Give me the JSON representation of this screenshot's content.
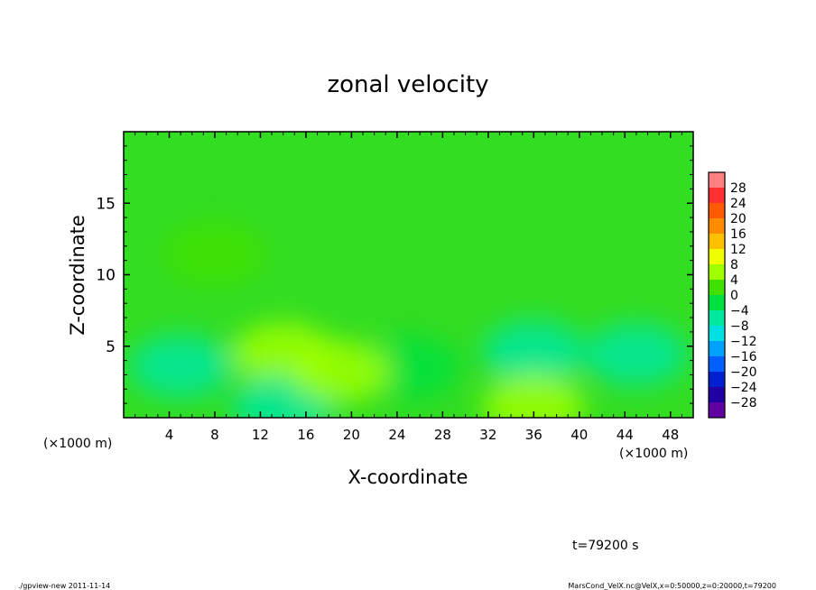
{
  "chart_data": {
    "type": "heatmap",
    "title": "zonal velocity",
    "xlabel": "X-coordinate",
    "ylabel": "Z-coordinate",
    "x_unit_left": "(×1000 m)",
    "x_unit_right": "(×1000 m)",
    "xlim": [
      0,
      50
    ],
    "ylim": [
      0,
      20
    ],
    "x_ticks": [
      4,
      8,
      12,
      16,
      20,
      24,
      28,
      32,
      36,
      40,
      44,
      48
    ],
    "y_ticks": [
      5,
      10,
      15
    ],
    "colorbar": {
      "levels": [
        28,
        24,
        20,
        16,
        12,
        8,
        4,
        0,
        -4,
        -8,
        -12,
        -16,
        -20,
        -24,
        -28
      ],
      "level_labels": [
        "28",
        "24",
        "20",
        "16",
        "12",
        "8",
        "4",
        "0",
        "−4",
        "−8",
        "−12",
        "−16",
        "−20",
        "−24",
        "−28"
      ],
      "colors": [
        "#ff8080",
        "#ff3030",
        "#ff5a00",
        "#ff8c00",
        "#ffc000",
        "#f0ff00",
        "#a0ff00",
        "#40e000",
        "#00e040",
        "#00e8a0",
        "#00e0e0",
        "#00a0ff",
        "#0060ff",
        "#0020d0",
        "#2000a0",
        "#6000a0"
      ]
    },
    "field_features": [
      {
        "x": 5,
        "z": 3.6,
        "value": -6
      },
      {
        "x": 14,
        "z": 4.5,
        "value": 5
      },
      {
        "x": 14,
        "z": 0.8,
        "value": -5
      },
      {
        "x": 25,
        "z": 3.5,
        "value": -4
      },
      {
        "x": 36,
        "z": 4.6,
        "value": -7
      },
      {
        "x": 36,
        "z": 0.8,
        "value": 6
      },
      {
        "x": 45,
        "z": 4.4,
        "value": -5
      },
      {
        "x": 19,
        "z": 3.2,
        "value": 4
      },
      {
        "x": 8,
        "z": 11.5,
        "value": 2
      }
    ],
    "field_background_value": 0,
    "time_label": "t=79200 s"
  },
  "footer": {
    "left": "./gpview-new   2011-11-14",
    "right": "MarsCond_VelX.nc@VelX,x=0:50000,z=0:20000,t=79200"
  }
}
